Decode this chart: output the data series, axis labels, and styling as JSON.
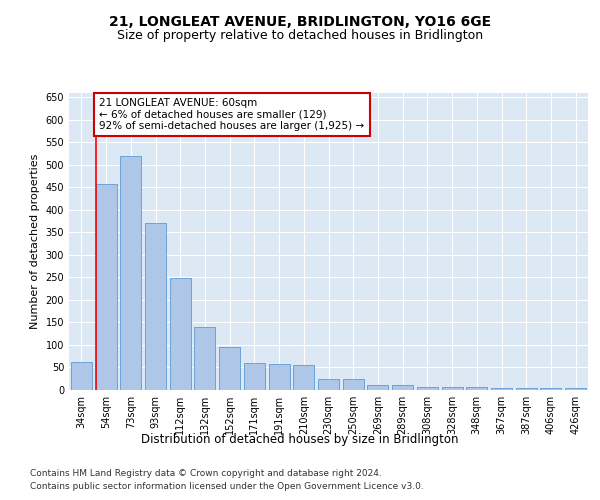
{
  "title": "21, LONGLEAT AVENUE, BRIDLINGTON, YO16 6GE",
  "subtitle": "Size of property relative to detached houses in Bridlington",
  "xlabel": "Distribution of detached houses by size in Bridlington",
  "ylabel": "Number of detached properties",
  "categories": [
    "34sqm",
    "54sqm",
    "73sqm",
    "93sqm",
    "112sqm",
    "132sqm",
    "152sqm",
    "171sqm",
    "191sqm",
    "210sqm",
    "230sqm",
    "250sqm",
    "269sqm",
    "289sqm",
    "308sqm",
    "328sqm",
    "348sqm",
    "367sqm",
    "387sqm",
    "406sqm",
    "426sqm"
  ],
  "values": [
    62,
    457,
    520,
    370,
    248,
    140,
    95,
    60,
    58,
    55,
    25,
    24,
    10,
    12,
    7,
    7,
    6,
    5,
    4,
    5,
    5
  ],
  "bar_color": "#aec6e8",
  "bar_edge_color": "#5b9bd5",
  "red_line_x": 1,
  "annotation_text": "21 LONGLEAT AVENUE: 60sqm\n← 6% of detached houses are smaller (129)\n92% of semi-detached houses are larger (1,925) →",
  "annotation_box_color": "#ffffff",
  "annotation_box_edge_color": "#cc0000",
  "ylim": [
    0,
    660
  ],
  "yticks": [
    0,
    50,
    100,
    150,
    200,
    250,
    300,
    350,
    400,
    450,
    500,
    550,
    600,
    650
  ],
  "background_color": "#dce9f5",
  "footer_line1": "Contains HM Land Registry data © Crown copyright and database right 2024.",
  "footer_line2": "Contains public sector information licensed under the Open Government Licence v3.0.",
  "title_fontsize": 10,
  "subtitle_fontsize": 9,
  "xlabel_fontsize": 8.5,
  "ylabel_fontsize": 8,
  "tick_fontsize": 7,
  "annotation_fontsize": 7.5,
  "footer_fontsize": 6.5
}
